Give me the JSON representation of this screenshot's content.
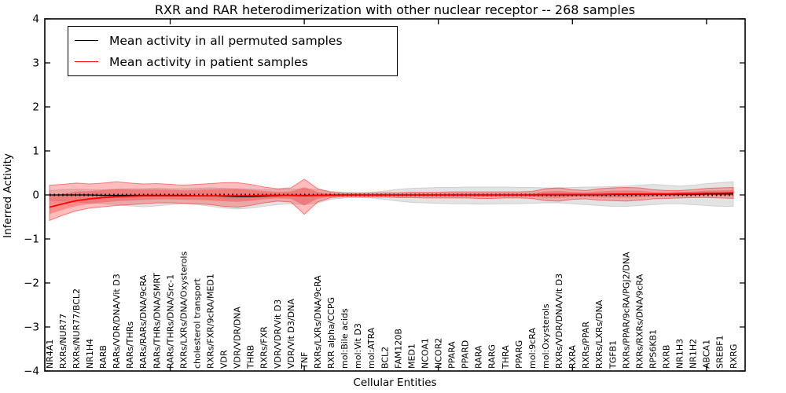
{
  "figure": {
    "title": "RXR and RAR heterodimerization with other nuclear receptor -- 268 samples",
    "xlabel": "Cellular Entities",
    "ylabel": "Inferred Activity"
  },
  "legend": {
    "entries": [
      {
        "label": "Mean activity in all permuted samples",
        "color": "#000000"
      },
      {
        "label": "Mean activity in patient samples",
        "color": "#ff0000"
      }
    ]
  },
  "colors": {
    "permuted_line": "#000000",
    "patient_line": "#ff0000",
    "patient_band": "#ff0000",
    "permuted_band": "#999999",
    "axis": "#000000"
  },
  "chart_data": {
    "type": "area",
    "title": "RXR and RAR heterodimerization with other nuclear receptor -- 268 samples",
    "xlabel": "Cellular Entities",
    "ylabel": "Inferred Activity",
    "ylim": [
      -4,
      4
    ],
    "yticks": [
      "4",
      "3",
      "2",
      "1",
      "0",
      "−1",
      "−2",
      "−3",
      "−4"
    ],
    "ytick_values": [
      4,
      3,
      2,
      1,
      0,
      -1,
      -2,
      -3,
      -4
    ],
    "x_major_tick_positions": [
      10,
      20,
      30,
      40,
      50
    ],
    "grid": false,
    "legend_position": "upper left",
    "categories": [
      "NR4A1",
      "RXRs/NUR77",
      "RXRs/NUR77/BCL2",
      "NR1H4",
      "RARB",
      "RARs/VDR/DNA/Vit D3",
      "RARs/THRs",
      "RARs/RARs/DNA/9cRA",
      "RARs/THRs/DNA/SMRT",
      "RARs/THRs/DNA/Src-1",
      "RXRs/LXRs/DNA/Oxysterols",
      "cholesterol transport",
      "RXRs/FXR/9cRA/MED1",
      "VDR",
      "VDR/VDR/DNA",
      "THRB",
      "RXRs/FXR",
      "VDR/VDR/Vit D3",
      "VDR/Vit D3/DNA",
      "TNF",
      "RXRs/LXRs/DNA/9cRA",
      "RXR alpha/CCPG",
      "mol:Bile acids",
      "mol:Vit D3",
      "mol:ATRA",
      "BCL2",
      "FAM120B",
      "MED1",
      "NCOA1",
      "NCOR2",
      "PPARA",
      "PPARD",
      "RARA",
      "RARG",
      "THRA",
      "PPARG",
      "mol:9cRA",
      "mol:Oxysterols",
      "RXRs/VDR/DNA/Vit D3",
      "RXRA",
      "RXRs/PPAR",
      "RXRs/LXRs/DNA",
      "TGFB1",
      "RXRs/PPAR/9cRA/PGJ2/DNA",
      "RXRs/RXRs/DNA/9cRA",
      "RPS6KB1",
      "RXRB",
      "NR1H3",
      "NR1H2",
      "ABCA1",
      "SREBF1",
      "RXRG"
    ],
    "series": [
      {
        "name": "Mean activity in all permuted samples",
        "values": [
          0,
          0,
          0,
          0,
          -0.01,
          -0.01,
          -0.01,
          -0.01,
          -0.01,
          -0.01,
          -0.01,
          -0.02,
          -0.02,
          -0.03,
          -0.04,
          -0.04,
          -0.03,
          -0.02,
          -0.01,
          -0.01,
          -0.01,
          0,
          0,
          0,
          0,
          0,
          0,
          0,
          0,
          0,
          0,
          0,
          0,
          0,
          0,
          0,
          0,
          0,
          0,
          0,
          0,
          0,
          0.01,
          0.01,
          0.01,
          0.01,
          0.01,
          0.01,
          0.01,
          0.02,
          0.02,
          0.02
        ]
      },
      {
        "name": "Mean activity in patient samples",
        "values": [
          -0.28,
          -0.2,
          -0.13,
          -0.09,
          -0.06,
          -0.04,
          -0.03,
          -0.02,
          -0.02,
          -0.02,
          -0.02,
          -0.02,
          -0.02,
          -0.02,
          -0.02,
          -0.02,
          -0.01,
          -0.01,
          -0.01,
          -0.02,
          -0.01,
          -0.01,
          0,
          0,
          0,
          0,
          0,
          0,
          0,
          0,
          0,
          0,
          0,
          0,
          0,
          0,
          0,
          0.01,
          0.01,
          0.01,
          0.01,
          0.01,
          0.02,
          0.02,
          0.02,
          0.02,
          0.02,
          0.03,
          0.03,
          0.04,
          0.04,
          0.05
        ]
      },
      {
        "name": "permuted band upper",
        "values": [
          0.1,
          0.12,
          0.13,
          0.12,
          0.12,
          0.13,
          0.14,
          0.14,
          0.15,
          0.14,
          0.14,
          0.15,
          0.16,
          0.15,
          0.14,
          0.13,
          0.12,
          0.12,
          0.13,
          0.14,
          0.12,
          0.08,
          0.06,
          0.05,
          0.06,
          0.09,
          0.13,
          0.15,
          0.16,
          0.17,
          0.17,
          0.18,
          0.18,
          0.18,
          0.18,
          0.17,
          0.17,
          0.16,
          0.16,
          0.17,
          0.18,
          0.18,
          0.19,
          0.2,
          0.22,
          0.24,
          0.22,
          0.2,
          0.22,
          0.26,
          0.28,
          0.3
        ]
      },
      {
        "name": "permuted band lower",
        "values": [
          -0.12,
          -0.14,
          -0.16,
          -0.18,
          -0.2,
          -0.22,
          -0.25,
          -0.27,
          -0.25,
          -0.22,
          -0.2,
          -0.22,
          -0.26,
          -0.3,
          -0.32,
          -0.3,
          -0.26,
          -0.22,
          -0.2,
          -0.22,
          -0.18,
          -0.1,
          -0.07,
          -0.06,
          -0.07,
          -0.1,
          -0.14,
          -0.17,
          -0.18,
          -0.19,
          -0.2,
          -0.2,
          -0.21,
          -0.21,
          -0.2,
          -0.2,
          -0.19,
          -0.18,
          -0.18,
          -0.2,
          -0.22,
          -0.24,
          -0.26,
          -0.26,
          -0.24,
          -0.22,
          -0.2,
          -0.2,
          -0.22,
          -0.24,
          -0.26,
          -0.26
        ]
      },
      {
        "name": "patient band upper",
        "values": [
          0.22,
          0.24,
          0.27,
          0.25,
          0.27,
          0.3,
          0.27,
          0.25,
          0.26,
          0.24,
          0.22,
          0.24,
          0.26,
          0.28,
          0.28,
          0.24,
          0.18,
          0.14,
          0.16,
          0.36,
          0.14,
          0.06,
          0.04,
          0.04,
          0.04,
          0.05,
          0.05,
          0.06,
          0.06,
          0.06,
          0.07,
          0.07,
          0.07,
          0.07,
          0.07,
          0.07,
          0.08,
          0.14,
          0.16,
          0.12,
          0.1,
          0.14,
          0.16,
          0.17,
          0.16,
          0.12,
          0.1,
          0.1,
          0.12,
          0.15,
          0.16,
          0.17
        ]
      },
      {
        "name": "patient band lower",
        "values": [
          -0.58,
          -0.46,
          -0.36,
          -0.3,
          -0.27,
          -0.24,
          -0.22,
          -0.2,
          -0.18,
          -0.18,
          -0.19,
          -0.2,
          -0.22,
          -0.26,
          -0.28,
          -0.24,
          -0.18,
          -0.14,
          -0.16,
          -0.44,
          -0.16,
          -0.06,
          -0.04,
          -0.04,
          -0.05,
          -0.05,
          -0.06,
          -0.06,
          -0.07,
          -0.07,
          -0.07,
          -0.07,
          -0.08,
          -0.08,
          -0.07,
          -0.07,
          -0.08,
          -0.13,
          -0.14,
          -0.1,
          -0.09,
          -0.12,
          -0.13,
          -0.14,
          -0.12,
          -0.09,
          -0.08,
          -0.07,
          -0.06,
          -0.06,
          -0.07,
          -0.08
        ]
      }
    ]
  }
}
